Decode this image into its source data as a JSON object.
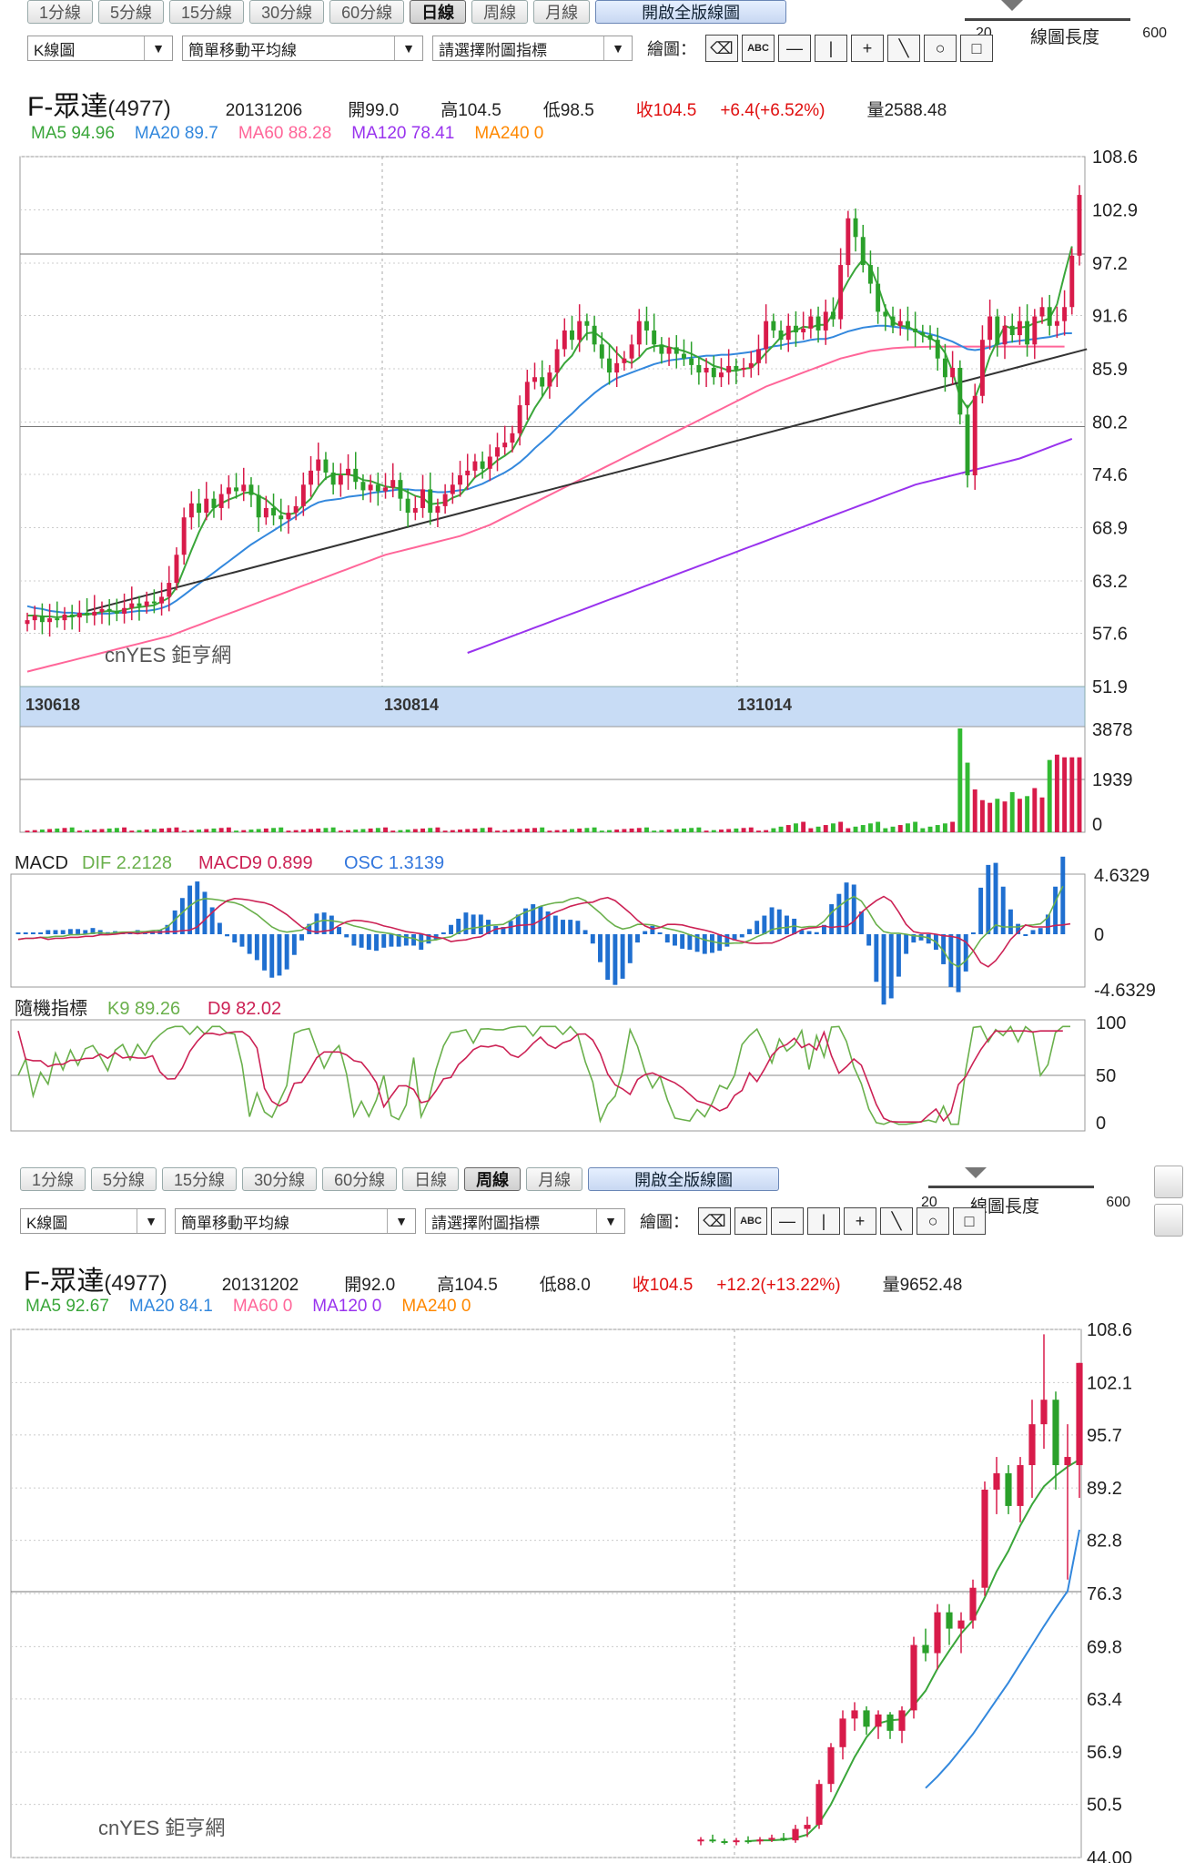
{
  "colors": {
    "up": "#d81b4a",
    "down": "#2aa02a",
    "ma5": "#3aa63a",
    "ma20": "#3388dd",
    "ma60": "#ff6699",
    "ma120": "#9933ee",
    "ma240": "#ff8800",
    "trend": "#333333",
    "volume_up": "#d81b4a",
    "volume_down": "#33bb33",
    "macd_bar": "#1f6fd0",
    "axis_bg": "#c8dcf5"
  },
  "tabs": [
    "1分線",
    "5分線",
    "15分線",
    "30分線",
    "60分線",
    "日線",
    "周線",
    "月線",
    "開啟全版線圖"
  ],
  "chart_type_select": "K線圖",
  "ma_type_select": "簡單移動平均線",
  "indicator_select": "請選擇附圖指標",
  "draw_label": "繪圖：",
  "tools": [
    "eraser-tool",
    "abc-text-tool",
    "horizontal-line-tool",
    "vertical-line-tool",
    "crosshair-tool",
    "diagonal-line-tool",
    "circle-tool",
    "rectangle-tool"
  ],
  "length_label": "線圖長度",
  "length_min": "20",
  "length_max": "600",
  "watermark": "cnYES 鉅亨網",
  "daily": {
    "active_tab": "日線",
    "symbol": "F-眾達",
    "code": "(4977)",
    "date": "20131206",
    "open": "開99.0",
    "high": "高104.5",
    "low": "低98.5",
    "close": "收104.5",
    "change": "+6.4(+6.52%)",
    "volume": "量2588.48",
    "ma": [
      {
        "label": "MA5 94.96",
        "color": "#3aa63a"
      },
      {
        "label": "MA20 89.7",
        "color": "#3388dd"
      },
      {
        "label": "MA60 88.28",
        "color": "#ff6699"
      },
      {
        "label": "MA120 78.41",
        "color": "#9933ee"
      },
      {
        "label": "MA240 0",
        "color": "#ff8800"
      }
    ],
    "date_labels": [
      "130618",
      "130814",
      "131014"
    ],
    "macd_label": "MACD",
    "dif_label": "DIF 2.2128",
    "macd9_label": "MACD9 0.899",
    "osc_label": "OSC 1.3139",
    "kd_label": "隨機指標",
    "k_label": "K9 89.26",
    "d_label": "D9 82.02"
  },
  "weekly": {
    "active_tab": "周線",
    "symbol": "F-眾達",
    "code": "(4977)",
    "date": "20131202",
    "open": "開92.0",
    "high": "高104.5",
    "low": "低88.0",
    "close": "收104.5",
    "change": "+12.2(+13.22%)",
    "volume": "量9652.48",
    "ma": [
      {
        "label": "MA5 92.67",
        "color": "#3aa63a"
      },
      {
        "label": "MA20 84.1",
        "color": "#3388dd"
      },
      {
        "label": "MA60 0",
        "color": "#ff6699"
      },
      {
        "label": "MA120 0",
        "color": "#9933ee"
      },
      {
        "label": "MA240 0",
        "color": "#ff8800"
      }
    ]
  },
  "chart_data": [
    {
      "type": "candlestick",
      "title": "F-眾達(4977) 日線",
      "yticks": [
        "108.6",
        "102.9",
        "97.2",
        "91.6",
        "85.9",
        "80.2",
        "74.6",
        "68.9",
        "63.2",
        "57.6",
        "51.9"
      ],
      "ylim": [
        51.9,
        108.6
      ],
      "x_labels": [
        "130618",
        "130814",
        "131014"
      ],
      "close_series": [
        59,
        59.5,
        58.8,
        59.2,
        59,
        59.6,
        59.3,
        59.8,
        59.5,
        59.9,
        60.2,
        60,
        59.7,
        60.3,
        60.8,
        60.5,
        61,
        60.8,
        61.5,
        63,
        66,
        70,
        71.5,
        70.5,
        72,
        71,
        72.5,
        73.2,
        72.8,
        73.5,
        72.4,
        70,
        71,
        70.2,
        69.8,
        70.5,
        71.2,
        73.5,
        75,
        76.2,
        74.8,
        73.5,
        74.5,
        75.2,
        73.8,
        72.9,
        73.5,
        72.8,
        73.2,
        74,
        72,
        70.5,
        71,
        73,
        70.5,
        71.2,
        72.5,
        73.5,
        74.5,
        75,
        76,
        75.2,
        76.5,
        77.5,
        78,
        79,
        82,
        84.5,
        85,
        84,
        85.5,
        88,
        90,
        89,
        91,
        90.5,
        88.5,
        87,
        85.5,
        86.5,
        87,
        88.5,
        91,
        90,
        88.5,
        87.5,
        88.2,
        87.5,
        87,
        86.3,
        85.5,
        86,
        85,
        85.5,
        86.2,
        85.8,
        86,
        86.5,
        88,
        91,
        90,
        89,
        90.5,
        89.8,
        90.2,
        91.5,
        90,
        92,
        91.2,
        97,
        102,
        100,
        97,
        95,
        92,
        91.5,
        90.5,
        91,
        90.2,
        89.8,
        89.5,
        89,
        87,
        85,
        86,
        81,
        74.5,
        83,
        89,
        91.5,
        88.5,
        90.5,
        89.5,
        91,
        88.5,
        91.5,
        92.5,
        90.5,
        91,
        92.5,
        98,
        104.5
      ],
      "ma5": [
        59.5,
        59.5,
        59.4,
        59.4,
        59.3,
        59.4,
        59.4,
        59.6,
        59.6,
        59.7,
        59.9,
        60,
        59.9,
        60.1,
        60.3,
        60.4,
        60.5,
        60.6,
        61,
        61.4,
        62.5,
        64.5,
        66.5,
        68.4,
        70,
        71,
        71.5,
        71.9,
        72.2,
        72.6,
        72.7,
        72.3,
        71.9,
        71.2,
        70.5,
        70.3,
        70.5,
        71.3,
        72,
        73.3,
        74.2,
        74.6,
        74.6,
        74.6,
        74.4,
        74,
        73.9,
        73.6,
        73.3,
        73.2,
        73.1,
        72.7,
        72.3,
        72.1,
        71.4,
        71.5,
        71.6,
        72.1,
        72.4,
        73.3,
        74.3,
        74.8,
        75.4,
        76.1,
        76.6,
        77.2,
        78.6,
        80.2,
        81.7,
        82.9,
        84.2,
        85.4,
        86.5,
        87.3,
        88.7,
        89.7,
        89.8,
        89.2,
        88.5,
        87.6,
        86.8,
        86.5,
        87.1,
        88,
        88.3,
        88.4,
        88.2,
        88,
        87.8,
        87.5,
        87.1,
        86.7,
        86.2,
        86,
        85.7,
        85.7,
        85.9,
        86,
        86.7,
        87.6,
        88.4,
        89.3,
        89.8,
        90,
        90.4,
        90.3,
        90.6,
        90.6,
        91.8,
        93.8,
        95.3,
        96.6,
        97.6,
        96.8,
        94.8,
        92.4,
        90.9,
        90.5,
        90.4,
        90,
        89.5,
        89.2,
        88.7,
        87.6,
        85.6,
        82.9,
        81.7,
        82.8,
        84.8,
        87.2,
        88.9,
        90.5,
        90.2,
        90.3,
        90.4,
        90.8,
        91,
        91.3,
        92.8,
        96,
        99
      ],
      "ma20": [
        60.5,
        60.3,
        60.2,
        60,
        59.9,
        59.8,
        59.8,
        59.7,
        59.7,
        59.7,
        59.7,
        59.7,
        59.8,
        59.8,
        59.9,
        60,
        60,
        60.1,
        60.3,
        60.6,
        61.1,
        61.7,
        62.3,
        62.9,
        63.5,
        64.1,
        64.7,
        65.3,
        65.9,
        66.5,
        67.1,
        67.6,
        68.1,
        68.6,
        69.1,
        69.6,
        70.1,
        70.7,
        71.2,
        71.6,
        71.8,
        71.9,
        72,
        72.2,
        72.3,
        72.4,
        72.6,
        72.7,
        72.8,
        72.9,
        73,
        73,
        72.9,
        72.9,
        72.8,
        72.7,
        72.7,
        72.8,
        72.9,
        73,
        73.3,
        73.6,
        74,
        74.4,
        74.8,
        75.3,
        75.9,
        76.6,
        77.4,
        78.1,
        78.8,
        79.6,
        80.4,
        81.1,
        81.9,
        82.6,
        83.3,
        83.9,
        84.4,
        84.9,
        85.2,
        85.5,
        85.8,
        86.1,
        86.4,
        86.6,
        86.8,
        86.9,
        87,
        87.1,
        87.2,
        87.3,
        87.3,
        87.4,
        87.4,
        87.5,
        87.6,
        87.7,
        87.9,
        88.1,
        88.3,
        88.4,
        88.6,
        88.7,
        88.8,
        89,
        89.1,
        89.1,
        89.3,
        89.6,
        89.9,
        90.1,
        90.3,
        90.4,
        90.5,
        90.5,
        90.4,
        90.3,
        90.2,
        90,
        89.8,
        89.6,
        89.4,
        89.1,
        88.8,
        88.4,
        88,
        87.9,
        88,
        88.2,
        88.5,
        88.7,
        88.8,
        88.9,
        89,
        89.1,
        89.2,
        89.3,
        89.5,
        89.7,
        89.7
      ],
      "ma60": [
        53.5,
        53.7,
        53.9,
        54.1,
        54.3,
        54.5,
        54.7,
        54.9,
        55.1,
        55.3,
        55.5,
        55.7,
        55.9,
        56.1,
        56.3,
        56.5,
        56.7,
        56.9,
        57.1,
        57.3,
        57.6,
        57.9,
        58.2,
        58.5,
        58.8,
        59.1,
        59.4,
        59.7,
        60,
        60.3,
        60.6,
        60.9,
        61.2,
        61.5,
        61.8,
        62.1,
        62.4,
        62.7,
        63,
        63.3,
        63.6,
        63.9,
        64.2,
        64.5,
        64.8,
        65.1,
        65.4,
        65.7,
        66,
        66.2,
        66.4,
        66.6,
        66.8,
        67,
        67.2,
        67.4,
        67.6,
        67.8,
        68,
        68.3,
        68.6,
        68.9,
        69.2,
        69.6,
        70,
        70.4,
        70.8,
        71.2,
        71.6,
        72,
        72.4,
        72.8,
        73.2,
        73.6,
        74,
        74.4,
        74.8,
        75.2,
        75.6,
        76,
        76.4,
        76.8,
        77.2,
        77.6,
        78,
        78.4,
        78.8,
        79.2,
        79.6,
        80,
        80.4,
        80.8,
        81.2,
        81.6,
        82,
        82.4,
        82.8,
        83.2,
        83.6,
        84,
        84.3,
        84.6,
        84.9,
        85.2,
        85.5,
        85.8,
        86.1,
        86.4,
        86.7,
        87,
        87.2,
        87.4,
        87.6,
        87.8,
        87.9,
        88,
        88.1,
        88.15,
        88.2,
        88.22,
        88.24,
        88.26,
        88.27,
        88.28,
        88.28,
        88.28,
        88.28,
        88.28,
        88.28,
        88.28,
        88.28,
        88.28,
        88.28,
        88.28,
        88.28,
        88.28,
        88.28,
        88.28,
        88.28,
        88.28
      ],
      "ma120_start_index": 59,
      "ma120": [
        55.5,
        55.8,
        56.1,
        56.4,
        56.7,
        57,
        57.3,
        57.6,
        57.9,
        58.2,
        58.5,
        58.8,
        59.1,
        59.4,
        59.7,
        60,
        60.3,
        60.6,
        60.9,
        61.2,
        61.5,
        61.8,
        62.1,
        62.4,
        62.7,
        63,
        63.3,
        63.6,
        63.9,
        64.2,
        64.5,
        64.8,
        65.1,
        65.4,
        65.7,
        66,
        66.3,
        66.6,
        66.9,
        67.2,
        67.5,
        67.8,
        68.1,
        68.4,
        68.7,
        69,
        69.3,
        69.6,
        69.9,
        70.2,
        70.5,
        70.8,
        71.1,
        71.4,
        71.7,
        72,
        72.3,
        72.6,
        72.9,
        73.2,
        73.5,
        73.7,
        73.9,
        74.1,
        74.3,
        74.5,
        74.7,
        74.9,
        75.1,
        75.3,
        75.5,
        75.7,
        75.9,
        76.1,
        76.3,
        76.6,
        76.9,
        77.2,
        77.5,
        77.8,
        78.1,
        78.41
      ],
      "trendline": [
        [
          8,
          60
        ],
        [
          142,
          88
        ]
      ],
      "volume_ylim": [
        0,
        3878
      ],
      "volume_yticks": [
        "3878",
        "1939",
        "0"
      ],
      "macd": {
        "yticks": [
          "4.6329",
          "0",
          "-4.6329"
        ],
        "DIF": 2.2128,
        "MACD9": 0.899,
        "OSC": 1.3139
      },
      "kd": {
        "yticks": [
          "100",
          "50",
          "0"
        ],
        "K9": 89.26,
        "D9": 82.02
      }
    },
    {
      "type": "candlestick",
      "title": "F-眾達(4977) 周線",
      "yticks": [
        "108.6",
        "102.1",
        "95.7",
        "89.2",
        "82.8",
        "76.3",
        "69.8",
        "63.4",
        "56.9",
        "50.5",
        "44.00"
      ],
      "ylim": [
        44.0,
        108.6
      ],
      "weekly_candles": [
        [
          46,
          46.5,
          45.5,
          46.2
        ],
        [
          46.2,
          46.8,
          45.8,
          46
        ],
        [
          46,
          46.3,
          45.6,
          45.9
        ],
        [
          45.9,
          46.4,
          45.5,
          46.1
        ],
        [
          46.1,
          46.6,
          45.7,
          46
        ],
        [
          46,
          46.5,
          45.6,
          46.2
        ],
        [
          46.2,
          46.8,
          45.9,
          46.4
        ],
        [
          46.4,
          47,
          46,
          46.1
        ],
        [
          46.1,
          48,
          45.8,
          47.5
        ],
        [
          47.5,
          49,
          46.5,
          48
        ],
        [
          48,
          53.5,
          47.5,
          53
        ],
        [
          53,
          58,
          52,
          57.5
        ],
        [
          57.5,
          62,
          56,
          61
        ],
        [
          61,
          63,
          59.5,
          62
        ],
        [
          62,
          62.5,
          59,
          60
        ],
        [
          60,
          62,
          58.5,
          61.5
        ],
        [
          61.5,
          61.8,
          58.5,
          59.5
        ],
        [
          59.5,
          62.5,
          58,
          62
        ],
        [
          62,
          71,
          61,
          70
        ],
        [
          70,
          72,
          68,
          69
        ],
        [
          69,
          75,
          67,
          74
        ],
        [
          74,
          75,
          70,
          72
        ],
        [
          72,
          74,
          69,
          73
        ],
        [
          73,
          78,
          72,
          77
        ],
        [
          77,
          90,
          76,
          89
        ],
        [
          89,
          93,
          86,
          91
        ],
        [
          91,
          92,
          86,
          87
        ],
        [
          87,
          93,
          85,
          92
        ],
        [
          92,
          100,
          88,
          97
        ],
        [
          97,
          108,
          94,
          100
        ],
        [
          100,
          101,
          89,
          92
        ],
        [
          92,
          97,
          78,
          93
        ],
        [
          92,
          104.5,
          88,
          104.5
        ]
      ],
      "ma5": [
        null,
        null,
        null,
        null,
        46,
        46.1,
        46.1,
        46.2,
        46.4,
        46.8,
        48.2,
        50.5,
        53.4,
        56.3,
        58.7,
        60.4,
        60.8,
        60.9,
        62.6,
        64.4,
        67.1,
        69.3,
        71.4,
        73,
        75.8,
        79,
        81.5,
        84.6,
        87.2,
        89.4,
        90.7,
        91.8,
        92.67
      ],
      "ma20": [
        null,
        null,
        null,
        null,
        null,
        null,
        null,
        null,
        null,
        null,
        null,
        null,
        null,
        null,
        null,
        null,
        null,
        null,
        null,
        52.5,
        53.9,
        55.5,
        57.3,
        59.1,
        61.2,
        63.3,
        65.4,
        67.7,
        70,
        72.3,
        74.5,
        76.6,
        84.1
      ]
    }
  ]
}
